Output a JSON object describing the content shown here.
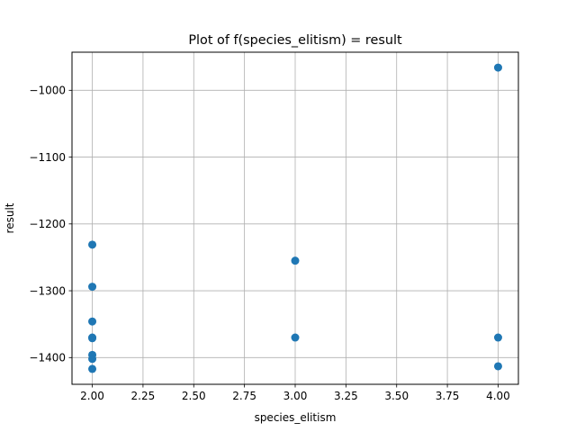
{
  "chart_data": {
    "type": "scatter",
    "title": "Plot of f(species_elitism) = result",
    "xlabel": "species_elitism",
    "ylabel": "result",
    "xlim": [
      1.9,
      4.1
    ],
    "ylim": [
      -1440,
      -943
    ],
    "xticks": [
      2.0,
      2.25,
      2.5,
      2.75,
      3.0,
      3.25,
      3.5,
      3.75,
      4.0
    ],
    "xtick_labels": [
      "2.00",
      "2.25",
      "2.50",
      "2.75",
      "3.00",
      "3.25",
      "3.50",
      "3.75",
      "4.00"
    ],
    "yticks": [
      -1400,
      -1300,
      -1200,
      -1100,
      -1000
    ],
    "ytick_labels": [
      "−1400",
      "−1300",
      "−1200",
      "−1100",
      "−1000"
    ],
    "grid": true,
    "marker_color": "#1f77b4",
    "points": [
      {
        "x": 2,
        "y": -1231
      },
      {
        "x": 2,
        "y": -1294
      },
      {
        "x": 2,
        "y": -1346
      },
      {
        "x": 2,
        "y": -1370
      },
      {
        "x": 2,
        "y": -1371
      },
      {
        "x": 2,
        "y": -1396
      },
      {
        "x": 2,
        "y": -1402
      },
      {
        "x": 2,
        "y": -1417
      },
      {
        "x": 3,
        "y": -1255
      },
      {
        "x": 3,
        "y": -1370
      },
      {
        "x": 4,
        "y": -966
      },
      {
        "x": 4,
        "y": -1370
      },
      {
        "x": 4,
        "y": -1413
      }
    ]
  }
}
